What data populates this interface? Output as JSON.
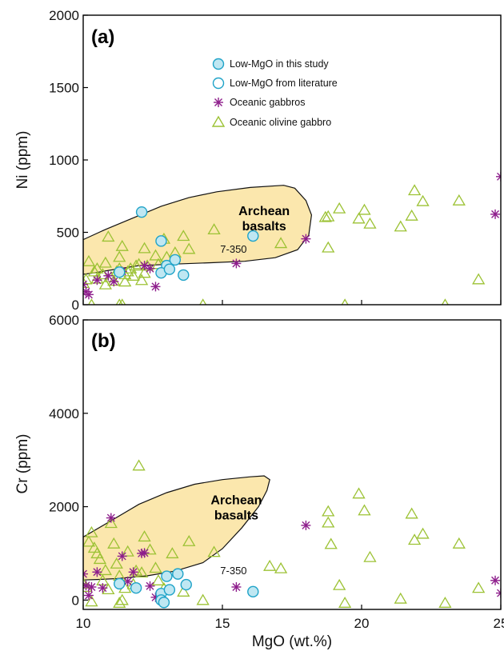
{
  "colors": {
    "low_mgo_study_fill": "#bfe7f2",
    "low_mgo_stroke": "#1fa3c8",
    "oceanic_gabbros": "#8e1e8c",
    "olivine_gabbro": "#9cc234",
    "archean_fill": "#fbe7ad",
    "archean_stroke": "#111111"
  },
  "legend": {
    "items": [
      {
        "label": "Low-MgO in this study",
        "marker": "circle-filled"
      },
      {
        "label": "Low-MgO from literature",
        "marker": "circle-open"
      },
      {
        "label": "Oceanic gabbros",
        "marker": "asterisk"
      },
      {
        "label": "Oceanic olivine gabbro",
        "marker": "triangle"
      }
    ]
  },
  "chart_data": [
    {
      "type": "scatter",
      "panel_label": "(a)",
      "xlabel": "",
      "ylabel": "Ni (ppm)",
      "xlim": [
        10,
        25
      ],
      "ylim": [
        0,
        2000
      ],
      "yticks": [
        0,
        500,
        1000,
        1500,
        2000
      ],
      "xticks": [
        10,
        15,
        20,
        25
      ],
      "show_x_tick_labels": false,
      "region": {
        "label_lines": [
          "Archean",
          "basalts"
        ],
        "polygon": [
          [
            10,
            450
          ],
          [
            10.8,
            520
          ],
          [
            11.8,
            600
          ],
          [
            12.8,
            680
          ],
          [
            13.8,
            740
          ],
          [
            14.8,
            780
          ],
          [
            16,
            810
          ],
          [
            17.2,
            825
          ],
          [
            17.6,
            805
          ],
          [
            18,
            720
          ],
          [
            18.2,
            620
          ],
          [
            18.1,
            480
          ],
          [
            17.7,
            380
          ],
          [
            16.9,
            325
          ],
          [
            15.8,
            300
          ],
          [
            14.6,
            290
          ],
          [
            13.2,
            280
          ],
          [
            12,
            270
          ],
          [
            11,
            240
          ],
          [
            10.4,
            220
          ],
          [
            10,
            210
          ]
        ],
        "label_pos": [
          16.5,
          620
        ]
      },
      "annotation": {
        "text": "7-350",
        "pos": [
          15.4,
          360
        ]
      },
      "series": [
        {
          "name": "Low-MgO in this study",
          "marker": "circle-filled",
          "points": [
            [
              12.1,
              640
            ],
            [
              12.8,
              440
            ],
            [
              13,
              270
            ],
            [
              13.3,
              310
            ],
            [
              12.8,
              220
            ],
            [
              13.1,
              245
            ],
            [
              13.6,
              205
            ],
            [
              11.3,
              225
            ],
            [
              16.1,
              475
            ]
          ]
        },
        {
          "name": "Oceanic gabbros",
          "marker": "asterisk",
          "points": [
            [
              10,
              140
            ],
            [
              10.1,
              90
            ],
            [
              10.2,
              70
            ],
            [
              10.5,
              170
            ],
            [
              10.9,
              200
            ],
            [
              11.1,
              160
            ],
            [
              11.4,
              230
            ],
            [
              12.2,
              270
            ],
            [
              12.4,
              250
            ],
            [
              12.6,
              125
            ],
            [
              15.5,
              285
            ],
            [
              18,
              455
            ],
            [
              24.8,
              625
            ],
            [
              25,
              885
            ]
          ]
        },
        {
          "name": "Oceanic olivine gabbro",
          "marker": "triangle",
          "points": [
            [
              10,
              150
            ],
            [
              10.1,
              175
            ],
            [
              10.2,
              300
            ],
            [
              10.4,
              230
            ],
            [
              10.5,
              250
            ],
            [
              10.5,
              180
            ],
            [
              10.7,
              210
            ],
            [
              10.8,
              140
            ],
            [
              10.8,
              290
            ],
            [
              10.9,
              470
            ],
            [
              11,
              190
            ],
            [
              11.1,
              165
            ],
            [
              11.2,
              230
            ],
            [
              11.3,
              330
            ],
            [
              11.3,
              250
            ],
            [
              11.4,
              405
            ],
            [
              11.5,
              210
            ],
            [
              11.5,
              160
            ],
            [
              11.6,
              230
            ],
            [
              11.7,
              250
            ],
            [
              11.8,
              200
            ],
            [
              11.9,
              270
            ],
            [
              12,
              280
            ],
            [
              12.1,
              170
            ],
            [
              12.2,
              390
            ],
            [
              12.2,
              220
            ],
            [
              12.3,
              270
            ],
            [
              12.6,
              340
            ],
            [
              12.7,
              280
            ],
            [
              12.9,
              455
            ],
            [
              13,
              330
            ],
            [
              13.3,
              360
            ],
            [
              13.6,
              475
            ],
            [
              13.8,
              385
            ],
            [
              14.3,
              0
            ],
            [
              14.7,
              520
            ],
            [
              17.1,
              425
            ],
            [
              18.7,
              605
            ],
            [
              18.8,
              610
            ],
            [
              18.8,
              395
            ],
            [
              19.2,
              665
            ],
            [
              19.4,
              0
            ],
            [
              19.9,
              595
            ],
            [
              20.1,
              655
            ],
            [
              20.3,
              560
            ],
            [
              21.4,
              540
            ],
            [
              21.8,
              615
            ],
            [
              21.9,
              790
            ],
            [
              22.2,
              715
            ],
            [
              23,
              0
            ],
            [
              23.5,
              720
            ],
            [
              24.2,
              175
            ],
            [
              10.3,
              0
            ],
            [
              11.3,
              0
            ],
            [
              11.4,
              0
            ]
          ]
        }
      ]
    },
    {
      "type": "scatter",
      "panel_label": "(b)",
      "xlabel": "MgO (wt.%)",
      "ylabel": "Cr (ppm)",
      "xlim": [
        10,
        25
      ],
      "ylim": [
        -200,
        6000
      ],
      "yticks": [
        0,
        2000,
        4000,
        6000
      ],
      "xticks": [
        10,
        15,
        20,
        25
      ],
      "show_x_tick_labels": true,
      "region": {
        "label_lines": [
          "Archean",
          "basalts"
        ],
        "polygon": [
          [
            10,
            1350
          ],
          [
            11,
            1700
          ],
          [
            12,
            2050
          ],
          [
            13,
            2300
          ],
          [
            14,
            2480
          ],
          [
            15,
            2580
          ],
          [
            16,
            2640
          ],
          [
            16.5,
            2660
          ],
          [
            16.7,
            2580
          ],
          [
            16.6,
            2350
          ],
          [
            16.3,
            2000
          ],
          [
            15.7,
            1550
          ],
          [
            15,
            1100
          ],
          [
            14.3,
            800
          ],
          [
            13.3,
            620
          ],
          [
            12.3,
            520
          ],
          [
            11.2,
            460
          ],
          [
            10.5,
            440
          ],
          [
            10,
            430
          ]
        ],
        "label_pos": [
          15.5,
          2050
        ]
      },
      "annotation": {
        "text": "7-350",
        "pos": [
          15.4,
          550
        ]
      },
      "series": [
        {
          "name": "Low-MgO in this study",
          "marker": "circle-filled",
          "points": [
            [
              11.3,
              350
            ],
            [
              11.9,
              260
            ],
            [
              12.8,
              140
            ],
            [
              12.8,
              0
            ],
            [
              13,
              510
            ],
            [
              13.1,
              220
            ],
            [
              13.4,
              560
            ],
            [
              13.7,
              330
            ],
            [
              12.9,
              -50
            ],
            [
              16.1,
              180
            ]
          ]
        },
        {
          "name": "Oceanic gabbros",
          "marker": "asterisk",
          "points": [
            [
              10,
              560
            ],
            [
              10.1,
              310
            ],
            [
              10.2,
              100
            ],
            [
              10.3,
              280
            ],
            [
              10.5,
              600
            ],
            [
              10.7,
              260
            ],
            [
              11,
              1760
            ],
            [
              11.4,
              940
            ],
            [
              11.6,
              400
            ],
            [
              11.8,
              600
            ],
            [
              12.1,
              1000
            ],
            [
              12.2,
              1010
            ],
            [
              12.4,
              300
            ],
            [
              12.6,
              60
            ],
            [
              15.5,
              280
            ],
            [
              18,
              1600
            ],
            [
              24.8,
              420
            ],
            [
              25,
              150
            ]
          ]
        },
        {
          "name": "Oceanic olivine gabbro",
          "marker": "triangle",
          "points": [
            [
              10,
              350
            ],
            [
              10.1,
              280
            ],
            [
              10.2,
              1250
            ],
            [
              10.3,
              1450
            ],
            [
              10.4,
              1120
            ],
            [
              10.5,
              1000
            ],
            [
              10.6,
              880
            ],
            [
              10.7,
              420
            ],
            [
              10.8,
              640
            ],
            [
              10.9,
              230
            ],
            [
              11,
              1650
            ],
            [
              11.1,
              1210
            ],
            [
              11.2,
              780
            ],
            [
              11.3,
              520
            ],
            [
              11.5,
              260
            ],
            [
              11.6,
              1040
            ],
            [
              11.8,
              340
            ],
            [
              11.9,
              630
            ],
            [
              12,
              2880
            ],
            [
              12.1,
              590
            ],
            [
              12.2,
              1360
            ],
            [
              12.4,
              1080
            ],
            [
              12.6,
              690
            ],
            [
              12.7,
              420
            ],
            [
              12.9,
              250
            ],
            [
              13.2,
              1000
            ],
            [
              13.6,
              180
            ],
            [
              13.8,
              1260
            ],
            [
              14.3,
              0
            ],
            [
              14.7,
              1030
            ],
            [
              16.7,
              730
            ],
            [
              17.1,
              680
            ],
            [
              18.8,
              1900
            ],
            [
              18.8,
              1660
            ],
            [
              18.9,
              1200
            ],
            [
              19.2,
              320
            ],
            [
              19.4,
              -60
            ],
            [
              19.9,
              2280
            ],
            [
              20.1,
              1920
            ],
            [
              20.3,
              920
            ],
            [
              21.4,
              30
            ],
            [
              21.8,
              1850
            ],
            [
              21.9,
              1290
            ],
            [
              22.2,
              1420
            ],
            [
              23,
              -60
            ],
            [
              23.5,
              1210
            ],
            [
              24.2,
              260
            ],
            [
              10.3,
              -30
            ],
            [
              11.3,
              -60
            ],
            [
              11.4,
              0
            ]
          ]
        }
      ]
    }
  ]
}
